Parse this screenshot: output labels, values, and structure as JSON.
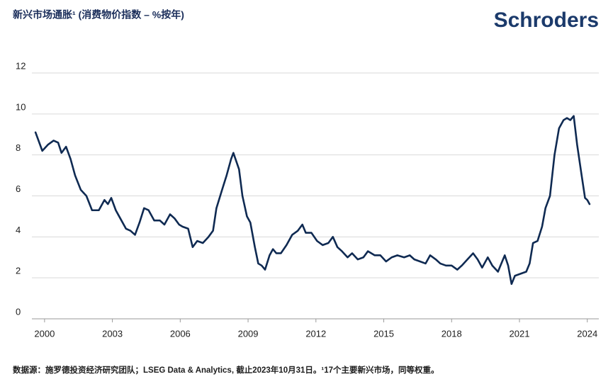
{
  "logo": "Schroders",
  "footer": "数据源：施罗德投资经济研究团队；LSEG Data & Analytics, 截止2023年10月31日。¹17个主要新兴市场，同等权重。",
  "chart_data": {
    "type": "line",
    "title": "新兴市场通胀¹ (消费物价指数 – %按年)",
    "x": [
      1999.6,
      1999.9,
      2000.15,
      2000.4,
      2000.6,
      2000.75,
      2000.95,
      2001.15,
      2001.35,
      2001.6,
      2001.85,
      2002.1,
      2002.4,
      2002.65,
      2002.8,
      2002.95,
      2003.15,
      2003.35,
      2003.6,
      2003.8,
      2004.0,
      2004.2,
      2004.4,
      2004.6,
      2004.85,
      2005.1,
      2005.3,
      2005.55,
      2005.75,
      2005.95,
      2006.1,
      2006.35,
      2006.55,
      2006.75,
      2007.0,
      2007.25,
      2007.45,
      2007.6,
      2007.85,
      2008.05,
      2008.25,
      2008.35,
      2008.6,
      2008.75,
      2008.95,
      2009.1,
      2009.3,
      2009.45,
      2009.6,
      2009.75,
      2009.95,
      2010.1,
      2010.25,
      2010.45,
      2010.7,
      2010.95,
      2011.2,
      2011.4,
      2011.55,
      2011.8,
      2012.05,
      2012.3,
      2012.55,
      2012.75,
      2012.95,
      2013.15,
      2013.4,
      2013.6,
      2013.85,
      2014.1,
      2014.3,
      2014.6,
      2014.85,
      2015.1,
      2015.35,
      2015.6,
      2015.9,
      2016.15,
      2016.35,
      2016.6,
      2016.85,
      2017.05,
      2017.3,
      2017.5,
      2017.75,
      2018.0,
      2018.25,
      2018.45,
      2018.7,
      2018.95,
      2019.15,
      2019.35,
      2019.6,
      2019.8,
      2020.05,
      2020.2,
      2020.35,
      2020.5,
      2020.65,
      2020.8,
      2021.05,
      2021.3,
      2021.45,
      2021.6,
      2021.8,
      2022.0,
      2022.15,
      2022.35,
      2022.55,
      2022.75,
      2022.95,
      2023.1,
      2023.25,
      2023.4,
      2023.55,
      2023.75,
      2023.9,
      2024.0,
      2024.1
    ],
    "series": [
      {
        "name": "新兴市场通胀",
        "color": "#0f2a52",
        "values": [
          9.1,
          8.2,
          8.5,
          8.7,
          8.6,
          8.1,
          8.4,
          7.8,
          7.0,
          6.3,
          6.0,
          5.3,
          5.3,
          5.8,
          5.6,
          5.9,
          5.3,
          4.9,
          4.4,
          4.3,
          4.1,
          4.7,
          5.4,
          5.3,
          4.8,
          4.8,
          4.6,
          5.1,
          4.9,
          4.6,
          4.5,
          4.4,
          3.5,
          3.8,
          3.7,
          4.0,
          4.3,
          5.4,
          6.3,
          7.0,
          7.8,
          8.1,
          7.3,
          6.0,
          5.0,
          4.7,
          3.5,
          2.7,
          2.6,
          2.4,
          3.1,
          3.4,
          3.2,
          3.2,
          3.6,
          4.1,
          4.3,
          4.6,
          4.2,
          4.2,
          3.8,
          3.6,
          3.7,
          4.0,
          3.5,
          3.3,
          3.0,
          3.2,
          2.9,
          3.0,
          3.3,
          3.1,
          3.1,
          2.8,
          3.0,
          3.1,
          3.0,
          3.1,
          2.9,
          2.8,
          2.7,
          3.1,
          2.9,
          2.7,
          2.6,
          2.6,
          2.4,
          2.6,
          2.9,
          3.2,
          2.9,
          2.5,
          3.0,
          2.6,
          2.3,
          2.7,
          3.1,
          2.6,
          1.7,
          2.1,
          2.2,
          2.3,
          2.7,
          3.7,
          3.8,
          4.5,
          5.4,
          6.0,
          8.0,
          9.3,
          9.7,
          9.8,
          9.7,
          9.9,
          8.5,
          7.0,
          5.9,
          5.8,
          5.6
        ]
      }
    ],
    "xlim": [
      1999.44,
      2024.51
    ],
    "xticks": [
      2000,
      2003,
      2006,
      2009,
      2012,
      2015,
      2018,
      2021,
      2024
    ],
    "ylim": [
      0,
      12
    ],
    "yticks": [
      0,
      2,
      4,
      6,
      8,
      10,
      12
    ],
    "grid": true
  }
}
